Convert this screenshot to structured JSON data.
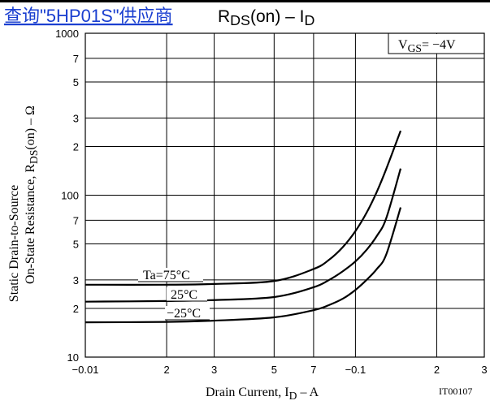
{
  "link_text": "查询\"5HP01S\"供应商",
  "chart_data": {
    "type": "line",
    "title": [
      "R",
      "DS",
      "(on)  –  I",
      "D"
    ],
    "x_label": [
      "Drain Current, I",
      "D",
      "  –  A"
    ],
    "y_label_line1": "Static Drain-to-Source",
    "y_label_line2": [
      "On-State Resistance, R",
      "DS",
      "(on)  –  Ω"
    ],
    "condition": [
      "V",
      "GS",
      "= −4V"
    ],
    "figure_code": "IT00107",
    "log_x": true,
    "log_y": true,
    "grid": true,
    "xlim": [
      0.01,
      0.3
    ],
    "xticks": [
      {
        "value": 0.01,
        "label": "−0.01"
      },
      {
        "value": 0.02,
        "label": "2"
      },
      {
        "value": 0.03,
        "label": "3"
      },
      {
        "value": 0.05,
        "label": "5"
      },
      {
        "value": 0.07,
        "label": "7"
      },
      {
        "value": 0.1,
        "label": "−0.1"
      },
      {
        "value": 0.2,
        "label": "2"
      },
      {
        "value": 0.3,
        "label": "3"
      }
    ],
    "ylim": [
      10,
      1000
    ],
    "yticks": [
      10,
      {
        "value": 20,
        "label": "2"
      },
      {
        "value": 30,
        "label": "3"
      },
      {
        "value": 50,
        "label": "5"
      },
      {
        "value": 70,
        "label": "7"
      },
      100,
      {
        "value": 200,
        "label": "2"
      },
      {
        "value": 300,
        "label": "3"
      },
      {
        "value": 500,
        "label": "5"
      },
      {
        "value": 700,
        "label": "7"
      },
      1000
    ],
    "x": [
      0.01,
      0.02,
      0.03,
      0.05,
      0.07,
      0.08,
      0.09,
      0.1,
      0.11,
      0.12,
      0.13,
      0.147
    ],
    "series": [
      {
        "name": "Ta=75°C",
        "color": "#000000",
        "values": [
          28,
          28,
          28.3,
          29.5,
          35,
          40,
          48,
          60,
          78,
          105,
          145,
          250
        ]
      },
      {
        "name": "25°C",
        "color": "#000000",
        "values": [
          22,
          22.2,
          22.5,
          23.5,
          27,
          30,
          34,
          39,
          46,
          56,
          72,
          146
        ]
      },
      {
        "name": "−25°C",
        "color": "#000000",
        "values": [
          16.4,
          16.5,
          16.8,
          17.6,
          19.5,
          21,
          23,
          26,
          30,
          35,
          43,
          84
        ]
      }
    ]
  }
}
